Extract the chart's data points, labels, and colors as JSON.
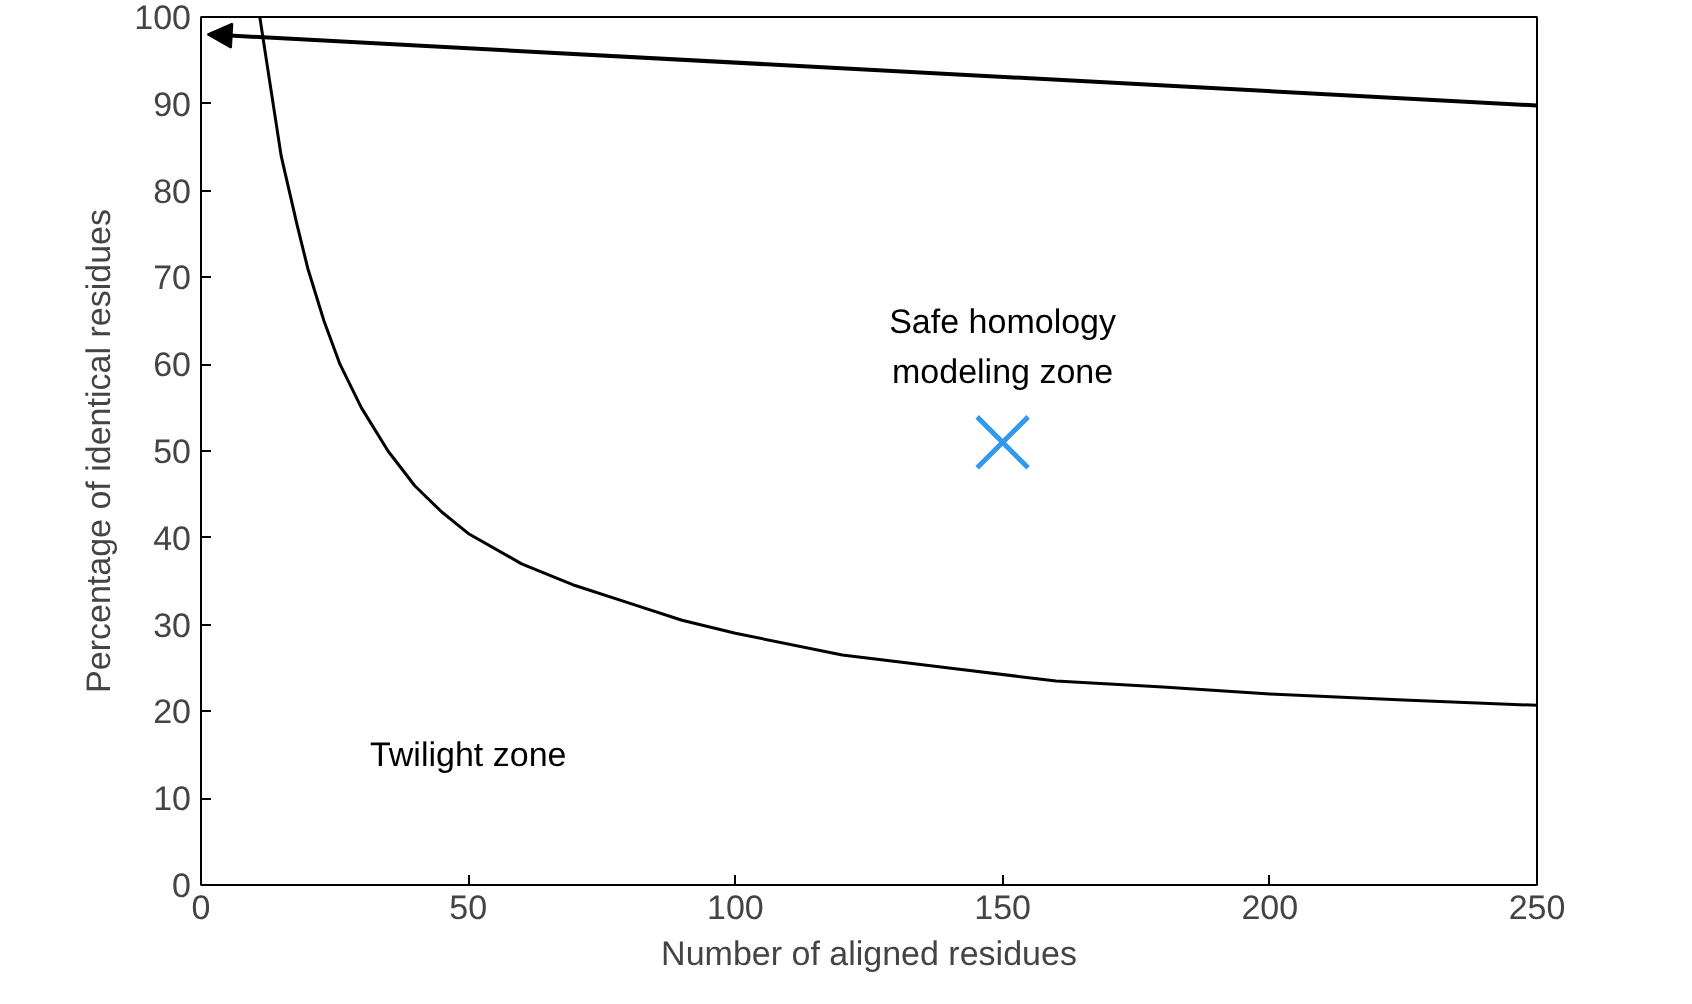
{
  "chart_data": {
    "type": "line",
    "xlabel": "Number of aligned residues",
    "ylabel": "Percentage of identical residues",
    "xlim": [
      0,
      250
    ],
    "ylim": [
      0,
      100
    ],
    "xticks": [
      0,
      50,
      100,
      150,
      200,
      250
    ],
    "yticks": [
      0,
      10,
      20,
      30,
      40,
      50,
      60,
      70,
      80,
      90,
      100
    ],
    "grid": false,
    "series": [
      {
        "color": "#000000",
        "x": [
          11,
          13,
          15,
          18,
          20,
          23,
          26,
          30,
          35,
          40,
          45,
          50,
          60,
          70,
          80,
          90,
          100,
          120,
          140,
          160,
          180,
          200,
          225,
          250
        ],
        "values": [
          100,
          92,
          84,
          76,
          71,
          65,
          60,
          55,
          50,
          46,
          43,
          40.5,
          37,
          34.5,
          32.5,
          30.5,
          29,
          26.5,
          25,
          23.5,
          22.8,
          22,
          21.3,
          20.7
        ]
      },
      {
        "type": "scatter",
        "marker": "cross",
        "color": "#3399ee",
        "x": [
          150
        ],
        "values": [
          51
        ]
      }
    ],
    "annotations": [
      "Safe homology\nmodeling zone",
      "Twilight zone"
    ]
  }
}
